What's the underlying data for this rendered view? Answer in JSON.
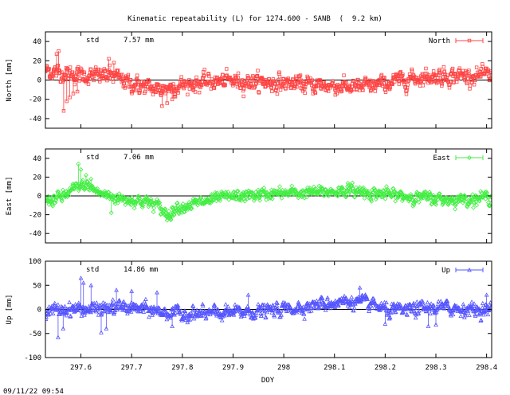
{
  "chart_data": {
    "type": "scatter",
    "title": "Kinematic repeatability (L) for 1274.600 - SANB  (  9.2 km)",
    "xlabel": "DOY",
    "xlim": [
      297.53,
      298.41
    ],
    "x_ticks": [
      297.6,
      297.7,
      297.8,
      297.9,
      298.0,
      298.1,
      298.2,
      298.3,
      298.4
    ],
    "x_tick_labels": [
      "297.6",
      "297.7",
      "297.8",
      "297.9",
      "298",
      "298.1",
      "298.2",
      "298.3",
      "298.4"
    ],
    "timestamp": "09/11/22 09:54",
    "panels": [
      {
        "id": "north",
        "ylabel": "North [mm]",
        "ylim": [
          -50,
          50
        ],
        "y_ticks": [
          -40,
          -20,
          0,
          20,
          40
        ],
        "y_tick_labels": [
          "-40",
          "-20",
          "0",
          "20",
          "40"
        ],
        "std_label": "std",
        "std_value": "7.57 mm",
        "legend": "North",
        "color": "#ff4444",
        "marker": "square",
        "trend": [
          [
            297.53,
            10
          ],
          [
            297.58,
            6
          ],
          [
            297.62,
            4
          ],
          [
            297.66,
            5
          ],
          [
            297.7,
            -4
          ],
          [
            297.75,
            -10
          ],
          [
            297.8,
            -5
          ],
          [
            297.85,
            -2
          ],
          [
            297.9,
            -1
          ],
          [
            297.95,
            -2
          ],
          [
            298.0,
            -3
          ],
          [
            298.05,
            -5
          ],
          [
            298.1,
            -6
          ],
          [
            298.15,
            -8
          ],
          [
            298.2,
            -4
          ],
          [
            298.25,
            2
          ],
          [
            298.3,
            4
          ],
          [
            298.35,
            5
          ],
          [
            298.41,
            4
          ]
        ],
        "noise_std": 6,
        "outliers": [
          [
            297.552,
            27
          ],
          [
            297.556,
            30
          ],
          [
            297.566,
            -32
          ],
          [
            297.572,
            -22
          ],
          [
            297.578,
            -18
          ],
          [
            297.585,
            -14
          ],
          [
            297.593,
            -12
          ],
          [
            297.655,
            22
          ],
          [
            297.665,
            18
          ],
          [
            297.76,
            -27
          ],
          [
            297.77,
            -24
          ],
          [
            297.78,
            -20
          ]
        ]
      },
      {
        "id": "east",
        "ylabel": "East [mm]",
        "ylim": [
          -50,
          50
        ],
        "y_ticks": [
          -40,
          -20,
          0,
          20,
          40
        ],
        "y_tick_labels": [
          "-40",
          "-20",
          "0",
          "20",
          "40"
        ],
        "std_label": "std",
        "std_value": "7.06 mm",
        "legend": "East",
        "color": "#44ee44",
        "marker": "diamond",
        "trend": [
          [
            297.53,
            -5
          ],
          [
            297.56,
            -2
          ],
          [
            297.59,
            8
          ],
          [
            297.61,
            12
          ],
          [
            297.64,
            2
          ],
          [
            297.68,
            -3
          ],
          [
            297.72,
            -5
          ],
          [
            297.75,
            -10
          ],
          [
            297.77,
            -20
          ],
          [
            297.79,
            -12
          ],
          [
            297.83,
            -8
          ],
          [
            297.88,
            -2
          ],
          [
            297.92,
            0
          ],
          [
            297.97,
            2
          ],
          [
            298.02,
            3
          ],
          [
            298.08,
            4
          ],
          [
            298.13,
            6
          ],
          [
            298.18,
            3
          ],
          [
            298.23,
            0
          ],
          [
            298.28,
            -2
          ],
          [
            298.33,
            -4
          ],
          [
            298.37,
            -3
          ],
          [
            298.41,
            -1
          ]
        ],
        "noise_std": 4.5,
        "outliers": [
          [
            297.595,
            34
          ],
          [
            297.6,
            28
          ],
          [
            297.61,
            22
          ],
          [
            297.62,
            18
          ],
          [
            297.77,
            -26
          ],
          [
            297.775,
            -24
          ],
          [
            297.78,
            -22
          ],
          [
            297.66,
            -18
          ]
        ]
      },
      {
        "id": "up",
        "ylabel": "Up [mm]",
        "ylim": [
          -100,
          100
        ],
        "y_ticks": [
          -100,
          -50,
          0,
          50,
          100
        ],
        "y_tick_labels": [
          "-100",
          "-50",
          "0",
          "50",
          "100"
        ],
        "std_label": "std",
        "std_value": "14.86 mm",
        "legend": "Up",
        "color": "#5555ff",
        "marker": "triangle",
        "trend": [
          [
            297.53,
            -5
          ],
          [
            297.58,
            2
          ],
          [
            297.63,
            0
          ],
          [
            297.68,
            5
          ],
          [
            297.73,
            0
          ],
          [
            297.78,
            -8
          ],
          [
            297.83,
            -10
          ],
          [
            297.88,
            -8
          ],
          [
            297.93,
            -5
          ],
          [
            297.98,
            -2
          ],
          [
            298.03,
            5
          ],
          [
            298.08,
            12
          ],
          [
            298.13,
            18
          ],
          [
            298.18,
            8
          ],
          [
            298.21,
            -5
          ],
          [
            298.25,
            0
          ],
          [
            298.3,
            4
          ],
          [
            298.35,
            2
          ],
          [
            298.41,
            -2
          ]
        ],
        "noise_std": 10,
        "outliers": [
          [
            297.555,
            -58
          ],
          [
            297.565,
            -40
          ],
          [
            297.6,
            65
          ],
          [
            297.605,
            55
          ],
          [
            297.62,
            50
          ],
          [
            297.64,
            -48
          ],
          [
            297.65,
            -40
          ],
          [
            297.67,
            40
          ],
          [
            297.7,
            38
          ],
          [
            297.75,
            35
          ],
          [
            297.78,
            -35
          ],
          [
            297.93,
            30
          ],
          [
            298.2,
            -30
          ],
          [
            298.285,
            -35
          ],
          [
            298.3,
            -32
          ],
          [
            298.4,
            30
          ],
          [
            298.15,
            45
          ]
        ]
      }
    ]
  }
}
